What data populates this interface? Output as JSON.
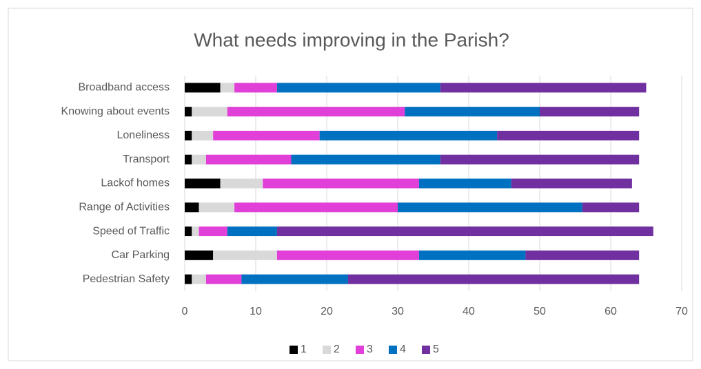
{
  "chart_data": {
    "type": "stacked_bar_horizontal",
    "title": "What needs improving in the Parish?",
    "categories": [
      "Broadband access",
      "Knowing about events",
      "Loneliness",
      "Transport",
      "Lackof homes",
      "Range of Activities",
      "Speed of Traffic",
      "Car Parking",
      "Pedestrian Safety"
    ],
    "series": [
      {
        "name": "1",
        "color": "#000000",
        "values": [
          5,
          1,
          1,
          1,
          5,
          2,
          1,
          4,
          1
        ]
      },
      {
        "name": "2",
        "color": "#d9d9d9",
        "values": [
          2,
          5,
          3,
          2,
          6,
          5,
          1,
          9,
          2
        ]
      },
      {
        "name": "3",
        "color": "#e040d8",
        "values": [
          6,
          25,
          15,
          12,
          22,
          23,
          4,
          20,
          5
        ]
      },
      {
        "name": "4",
        "color": "#0070c0",
        "values": [
          23,
          19,
          25,
          21,
          13,
          26,
          7,
          15,
          15
        ]
      },
      {
        "name": "5",
        "color": "#7030a0",
        "values": [
          29,
          14,
          20,
          28,
          17,
          8,
          53,
          16,
          41
        ]
      }
    ],
    "xlim": [
      0,
      70
    ],
    "xticks": [
      0,
      10,
      20,
      30,
      40,
      50,
      60,
      70
    ],
    "grid": true,
    "legend": "bottom"
  }
}
